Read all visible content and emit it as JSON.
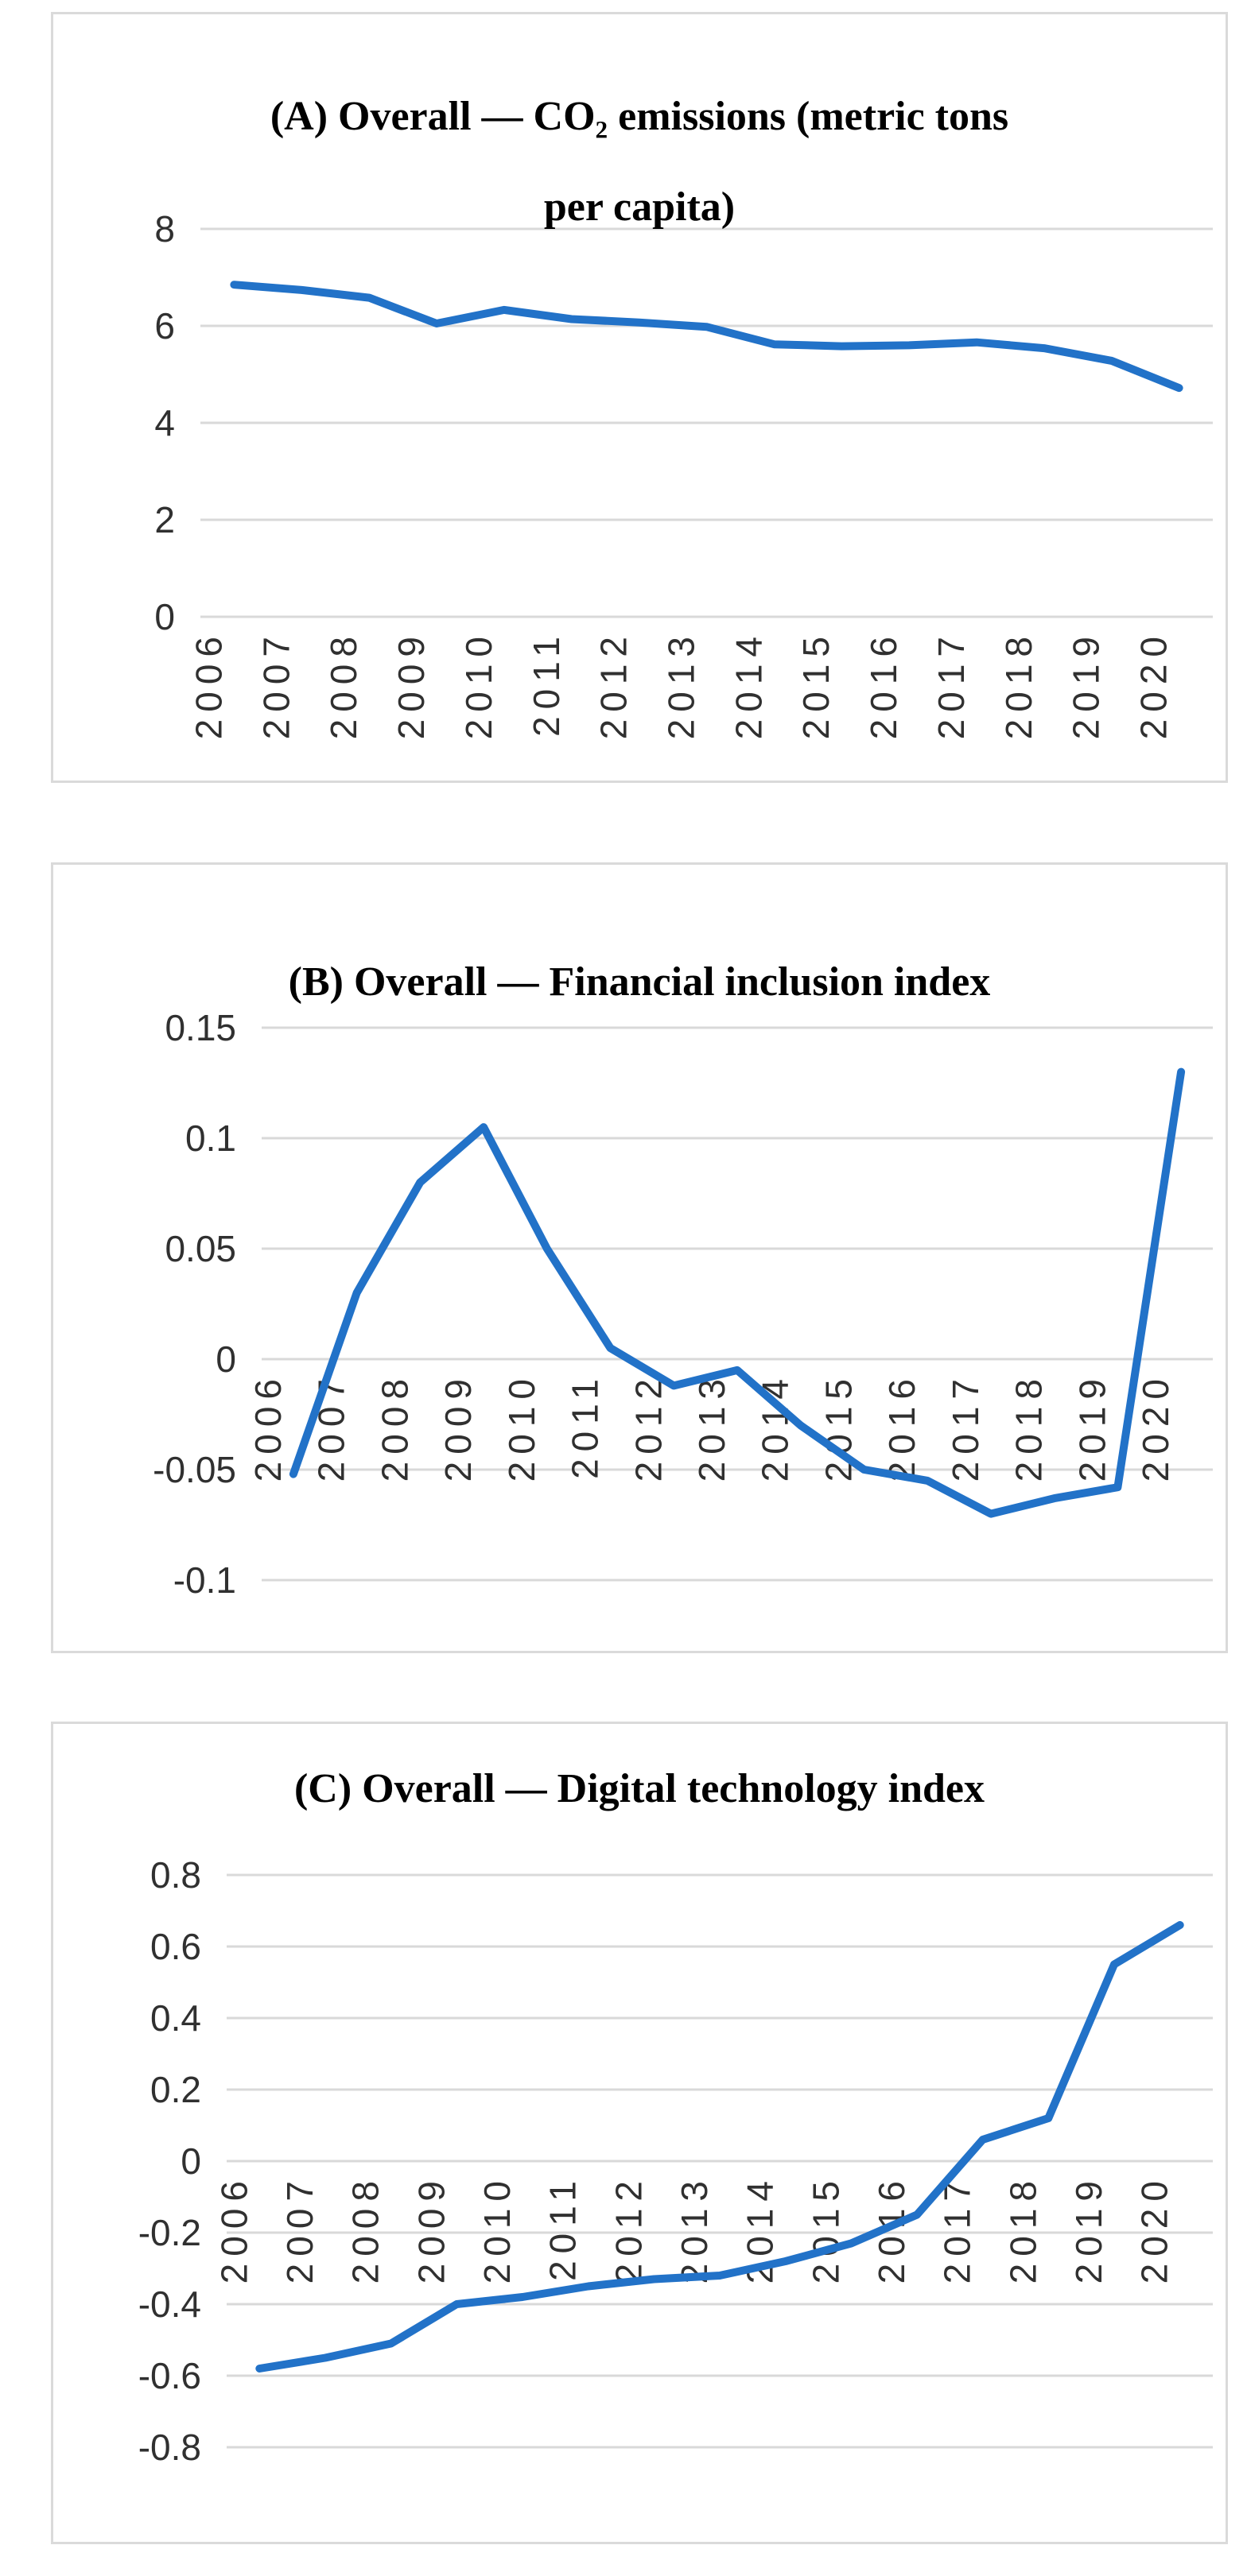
{
  "page": {
    "background": "#ffffff",
    "accent_blue": "#2272C8",
    "grid_color": "#D9D9D9",
    "panel_border_color": "#DADADA",
    "axis_text_color": "#303030",
    "title_color": "#000000"
  },
  "chart_data": [
    {
      "type": "line",
      "panel": "A",
      "title": "(A) Overall — CO₂ emissions (metric tons per capita)",
      "title_lines": [
        "(A) Overall — CO₂ emissions (metric tons",
        "per capita)"
      ],
      "categories": [
        "2006",
        "2007",
        "2008",
        "2009",
        "2010",
        "2011",
        "2012",
        "2013",
        "2014",
        "2015",
        "2016",
        "2017",
        "2018",
        "2019",
        "2020"
      ],
      "values": [
        6.85,
        6.74,
        6.58,
        6.05,
        6.33,
        6.14,
        6.07,
        5.98,
        5.62,
        5.58,
        5.6,
        5.66,
        5.54,
        5.28,
        4.72
      ],
      "y_ticks": [
        "8",
        "6",
        "4",
        "2",
        "0"
      ],
      "ylim": [
        0,
        8
      ],
      "xlabel": "",
      "ylabel": "",
      "grid": true,
      "legend": false,
      "line_color": "#2272C8"
    },
    {
      "type": "line",
      "panel": "B",
      "title": "(B) Overall — Financial inclusion index",
      "title_lines": [
        "(B) Overall — Financial inclusion index"
      ],
      "categories": [
        "2006",
        "2007",
        "2008",
        "2009",
        "2010",
        "2011",
        "2012",
        "2013",
        "2014",
        "2015",
        "2016",
        "2017",
        "2018",
        "2019",
        "2020"
      ],
      "values": [
        -0.052,
        0.03,
        0.08,
        0.105,
        0.05,
        0.005,
        -0.012,
        -0.005,
        -0.03,
        -0.05,
        -0.055,
        -0.07,
        -0.063,
        -0.058,
        0.13
      ],
      "y_ticks": [
        "0.15",
        "0.1",
        "0.05",
        "0",
        "-0.05",
        "-0.1"
      ],
      "ylim": [
        -0.1,
        0.15
      ],
      "xlabel": "",
      "ylabel": "",
      "grid": true,
      "legend": false,
      "line_color": "#2272C8"
    },
    {
      "type": "line",
      "panel": "C",
      "title": "(C) Overall — Digital technology index",
      "title_lines": [
        "(C) Overall — Digital technology index"
      ],
      "categories": [
        "2006",
        "2007",
        "2008",
        "2009",
        "2010",
        "2011",
        "2012",
        "2013",
        "2014",
        "2015",
        "2016",
        "2017",
        "2018",
        "2019",
        "2020"
      ],
      "values": [
        -0.58,
        -0.55,
        -0.51,
        -0.4,
        -0.38,
        -0.35,
        -0.33,
        -0.32,
        -0.28,
        -0.23,
        -0.15,
        0.06,
        0.12,
        0.55,
        0.66
      ],
      "y_ticks": [
        "0.8",
        "0.6",
        "0.4",
        "0.2",
        "0",
        "-0.2",
        "-0.4",
        "-0.6",
        "-0.8"
      ],
      "ylim": [
        -0.8,
        0.8
      ],
      "xlabel": "",
      "ylabel": "",
      "grid": true,
      "legend": false,
      "line_color": "#2272C8"
    }
  ]
}
